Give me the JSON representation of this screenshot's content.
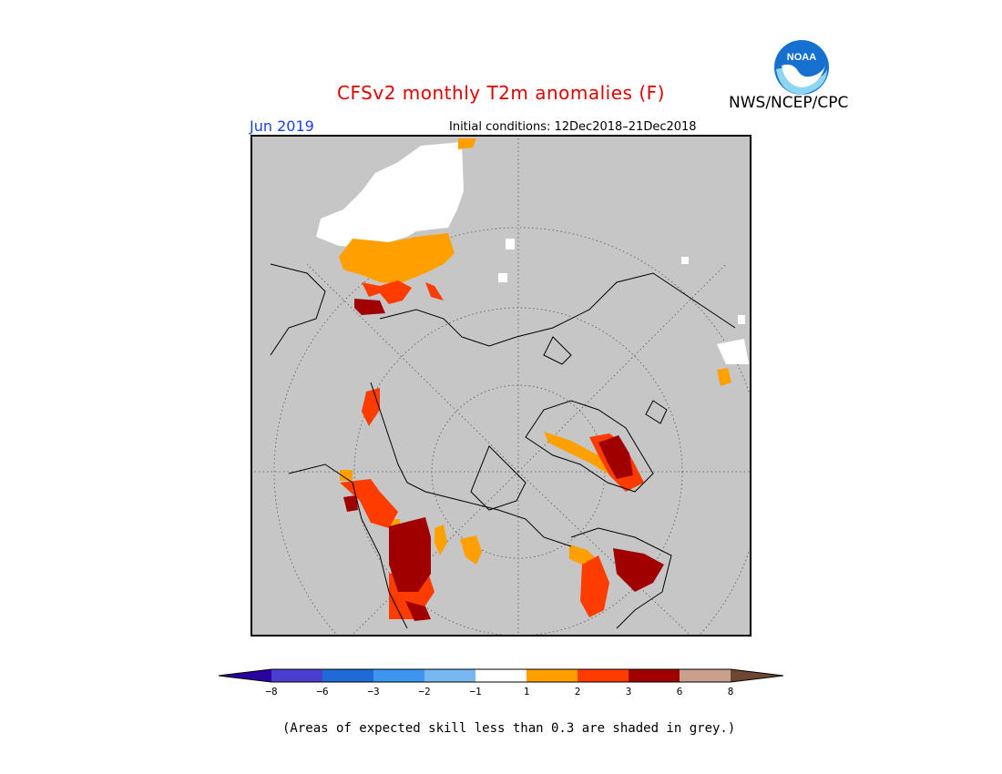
{
  "header": {
    "title": "CFSv2 monthly T2m anomalies (F)",
    "agency": "NWS/NCEP/CPC",
    "logo_text": "NOAA",
    "period": "Jun 2019",
    "initial_conditions": "Initial conditions: 12Dec2018–21Dec2018"
  },
  "colorbar": {
    "ticks": [
      "−8",
      "−6",
      "−3",
      "−2",
      "−1",
      "1",
      "2",
      "3",
      "6",
      "8"
    ],
    "colors": [
      "#2a00a0",
      "#4a3fd0",
      "#1e6ad8",
      "#3c96f0",
      "#78b8f0",
      "#ffffff",
      "#ffa000",
      "#ff3c00",
      "#a00000",
      "#c8a08c",
      "#6e4632"
    ]
  },
  "footnote": "(Areas of expected skill less than 0.3 are shaded in grey.)",
  "map": {
    "projection": "polar stereographic",
    "background": "#c6c6c6"
  }
}
